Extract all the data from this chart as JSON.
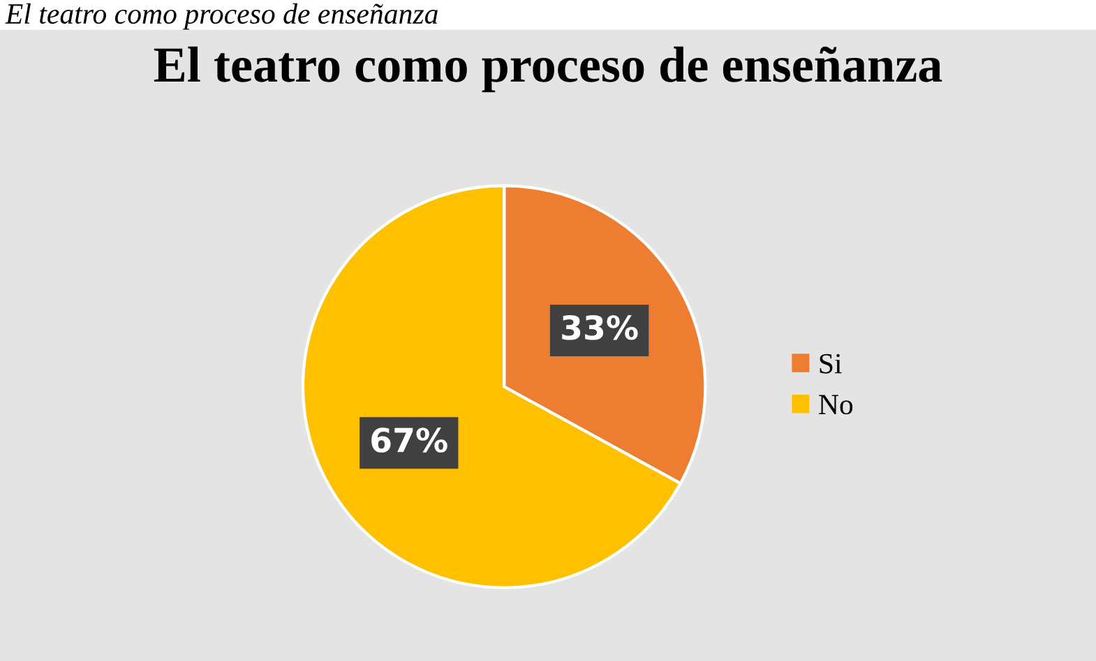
{
  "chart_data": {
    "type": "pie",
    "title": "El teatro como proceso de enseñanza",
    "annotations": [
      "El teatro como proceso de enseñanza"
    ],
    "categories": [
      "Si",
      "No"
    ],
    "values": [
      33,
      67
    ],
    "colors": [
      "#ed7d31",
      "#ffc000"
    ],
    "value_labels": [
      "33%",
      "67%"
    ],
    "legend": "right"
  }
}
